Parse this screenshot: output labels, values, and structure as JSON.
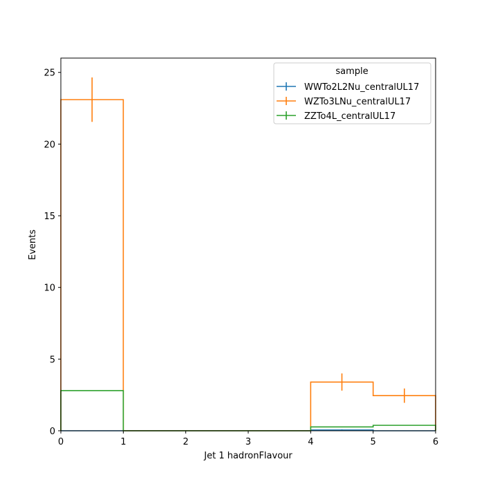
{
  "chart_data": {
    "type": "step-histogram",
    "xlabel": "Jet 1 hadronFlavour",
    "ylabel": "Events",
    "xlim": [
      0,
      6
    ],
    "ylim": [
      0,
      26
    ],
    "xticks": [
      "0",
      "1",
      "2",
      "3",
      "4",
      "5",
      "6"
    ],
    "yticks": [
      "0",
      "5",
      "10",
      "15",
      "20",
      "25"
    ],
    "bin_edges": [
      0,
      1,
      2,
      3,
      4,
      5,
      6
    ],
    "legend": {
      "title": "sample",
      "placement": "upper-right"
    },
    "series": [
      {
        "name": "WWTo2L2Nu_centralUL17",
        "color": "#1f77b4",
        "values": [
          0,
          0,
          0,
          0,
          0.05,
          0.0
        ],
        "errors": [
          0,
          0,
          0,
          0,
          0.05,
          0
        ]
      },
      {
        "name": "WZTo3LNu_centralUL17",
        "color": "#ff7f0e",
        "values": [
          23.1,
          0,
          0,
          0,
          3.4,
          2.45
        ],
        "errors": [
          1.55,
          0,
          0,
          0,
          0.6,
          0.5
        ]
      },
      {
        "name": "ZZTo4L_centralUL17",
        "color": "#2ca02c",
        "values": [
          2.8,
          0,
          0,
          0,
          0.27,
          0.38
        ],
        "errors": [
          0,
          0,
          0,
          0,
          0,
          0
        ]
      }
    ]
  }
}
